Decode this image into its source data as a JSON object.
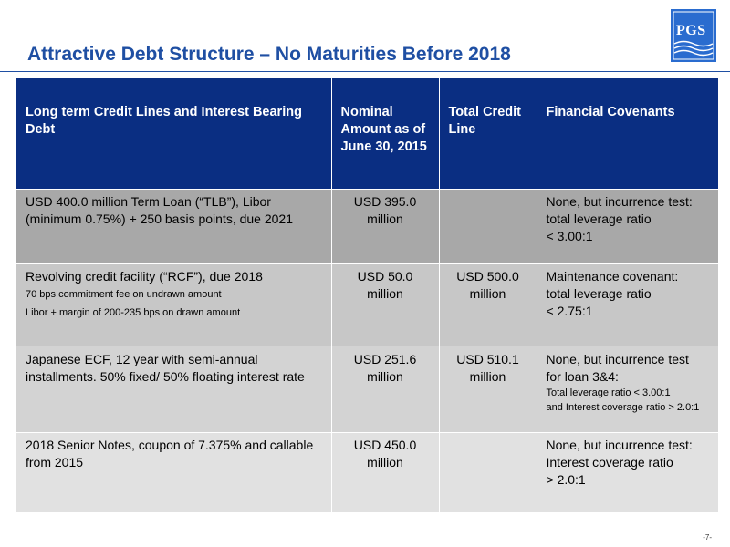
{
  "slide": {
    "title": "Attractive Debt Structure – No Maturities Before 2018",
    "page_number": "-7-",
    "logo_text": "PGS",
    "colors": {
      "accent": "#1f4fa3",
      "header_bg": "#0a2e82",
      "logo_bg": "#2a6ccf"
    }
  },
  "table": {
    "headers": {
      "debt": "Long term Credit Lines and Interest Bearing Debt",
      "nominal": "Nominal Amount as of June 30, 2015",
      "credit_line": "Total Credit Line",
      "covenants": "Financial Covenants"
    },
    "rows": [
      {
        "debt": "USD 400.0 million Term Loan (“TLB”), Libor (minimum 0.75%) + 250 basis points, due 2021",
        "nominal": "USD 395.0 million",
        "credit_line": "",
        "covenant_lines": [
          "None, but incurrence test:",
          "total leverage ratio",
          "< 3.00:1"
        ]
      },
      {
        "debt": "Revolving credit facility (“RCF”), due 2018",
        "debt_notes": [
          "70 bps commitment fee on undrawn amount",
          "Libor + margin of 200-235 bps on drawn amount"
        ],
        "nominal": "USD 50.0 million",
        "credit_line": "USD 500.0 million",
        "covenant_lines": [
          "Maintenance covenant:",
          "total leverage ratio",
          "< 2.75:1"
        ]
      },
      {
        "debt": "Japanese ECF, 12 year with semi-annual installments. 50% fixed/ 50% floating interest rate",
        "nominal": "USD 251.6 million",
        "credit_line": "USD 510.1 million",
        "covenant_lines": [
          "None, but incurrence test",
          "for loan 3&4:"
        ],
        "covenant_notes": [
          "Total leverage ratio < 3.00:1",
          "and Interest coverage ratio > 2.0:1"
        ]
      },
      {
        "debt": "2018 Senior Notes, coupon of 7.375% and callable from 2015",
        "nominal": "USD 450.0 million",
        "credit_line": "",
        "covenant_lines": [
          "None, but incurrence test:",
          "Interest coverage ratio",
          "> 2.0:1"
        ]
      }
    ]
  }
}
